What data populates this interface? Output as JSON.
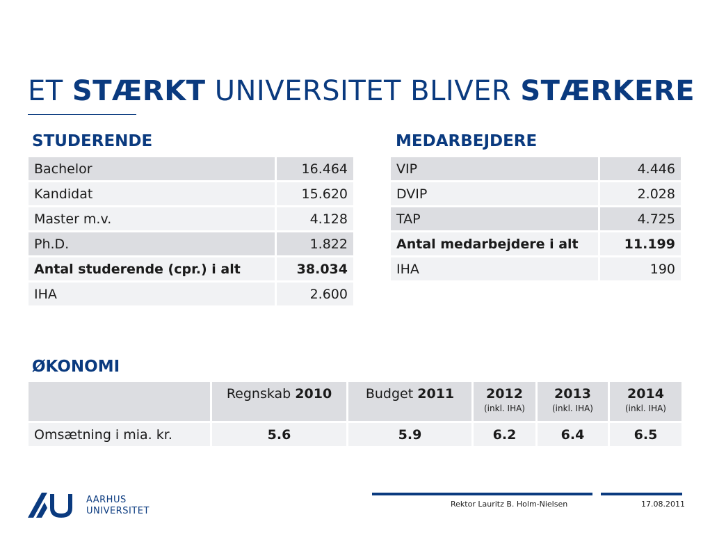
{
  "title": {
    "part1": "ET ",
    "part2": "STÆRKT",
    "part3": " UNIVERSITET BLIVER ",
    "part4": "STÆRKERE"
  },
  "studerende": {
    "heading": "STUDERENDE",
    "rows": [
      {
        "label": "Bachelor",
        "value": "16.464"
      },
      {
        "label": "Kandidat",
        "value": "15.620"
      },
      {
        "label": "Master m.v.",
        "value": "4.128"
      },
      {
        "label": "Ph.D.",
        "value": "1.822"
      },
      {
        "label": "Antal studerende (cpr.) i alt",
        "value": "38.034"
      },
      {
        "label": "IHA",
        "value": "2.600"
      }
    ]
  },
  "medarbejdere": {
    "heading": "MEDARBEJDERE",
    "rows": [
      {
        "label": "VIP",
        "value": "4.446"
      },
      {
        "label": "DVIP",
        "value": "2.028"
      },
      {
        "label": "TAP",
        "value": "4.725"
      },
      {
        "label": "Antal medarbejdere i alt",
        "value": "11.199"
      },
      {
        "label": "IHA",
        "value": "190"
      }
    ]
  },
  "okonomi": {
    "heading": "ØKONOMI",
    "columns": [
      {
        "label": "Regnskab ",
        "year": "2010",
        "sub": ""
      },
      {
        "label": "Budget ",
        "year": "2011",
        "sub": ""
      },
      {
        "label": "",
        "year": "2012",
        "sub": "(inkl. IHA)"
      },
      {
        "label": "",
        "year": "2013",
        "sub": "(inkl. IHA)"
      },
      {
        "label": "",
        "year": "2014",
        "sub": "(inkl. IHA)"
      }
    ],
    "row_label": "Omsætning i mia. kr.",
    "values": [
      "5.6",
      "5.9",
      "6.2",
      "6.4",
      "6.5"
    ]
  },
  "footer": {
    "presenter": "Rektor Lauritz B. Holm-Nielsen",
    "date": "17.08.2011",
    "logo_line1": "AARHUS",
    "logo_line2": "UNIVERSITET"
  },
  "colors": {
    "brand_blue": "#0a3a7f",
    "row_shade": "#dcdde1",
    "row_light": "#f1f2f4"
  }
}
